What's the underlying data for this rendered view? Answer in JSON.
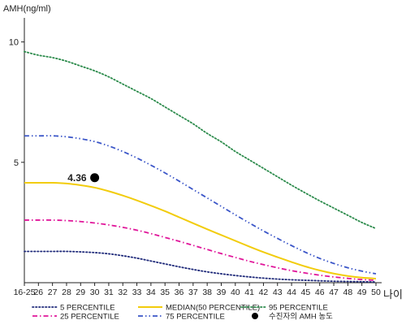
{
  "chart_data": {
    "type": "line",
    "ylabel": "AMH(ng/ml)",
    "xlabel": "나이",
    "ylim": [
      0,
      11
    ],
    "yticks": [
      5,
      10
    ],
    "categories": [
      "16-25",
      "26",
      "27",
      "28",
      "29",
      "30",
      "31",
      "32",
      "33",
      "34",
      "35",
      "36",
      "37",
      "38",
      "39",
      "40",
      "41",
      "42",
      "43",
      "44",
      "45",
      "46",
      "47",
      "48",
      "49",
      "50"
    ],
    "series": [
      {
        "name": "5 PERCENTILE",
        "color": "#1f2a7a",
        "dash": "dotted",
        "values": [
          1.3,
          1.3,
          1.3,
          1.3,
          1.28,
          1.25,
          1.2,
          1.12,
          1.02,
          0.9,
          0.78,
          0.66,
          0.55,
          0.45,
          0.37,
          0.3,
          0.24,
          0.19,
          0.15,
          0.12,
          0.1,
          0.08,
          0.06,
          0.05,
          0.04,
          0.03
        ]
      },
      {
        "name": "25 PERCENTILE",
        "color": "#e0169a",
        "dash": "dashdot",
        "values": [
          2.6,
          2.6,
          2.6,
          2.58,
          2.54,
          2.48,
          2.4,
          2.3,
          2.18,
          2.04,
          1.88,
          1.72,
          1.55,
          1.38,
          1.21,
          1.05,
          0.89,
          0.75,
          0.62,
          0.5,
          0.4,
          0.31,
          0.24,
          0.18,
          0.13,
          0.1
        ]
      },
      {
        "name": "MEDIAN(50 PERCENTILE)",
        "color": "#f2cc0c",
        "dash": "solid",
        "values": [
          4.15,
          4.15,
          4.15,
          4.12,
          4.05,
          3.95,
          3.8,
          3.62,
          3.42,
          3.2,
          2.97,
          2.72,
          2.47,
          2.22,
          1.98,
          1.74,
          1.5,
          1.27,
          1.06,
          0.86,
          0.67,
          0.51,
          0.38,
          0.28,
          0.21,
          0.17
        ]
      },
      {
        "name": "75 PERCENTILE",
        "color": "#3a55c8",
        "dash": "dashdotdot",
        "values": [
          6.1,
          6.1,
          6.1,
          6.06,
          5.98,
          5.86,
          5.68,
          5.45,
          5.18,
          4.88,
          4.56,
          4.22,
          3.87,
          3.52,
          3.17,
          2.82,
          2.48,
          2.15,
          1.84,
          1.54,
          1.26,
          1.01,
          0.8,
          0.62,
          0.48,
          0.37
        ]
      },
      {
        "name": "95 PERCENTILE",
        "color": "#2a8a4a",
        "dash": "dotted",
        "values": [
          9.6,
          9.45,
          9.35,
          9.2,
          9.0,
          8.8,
          8.55,
          8.25,
          7.95,
          7.65,
          7.3,
          6.95,
          6.6,
          6.2,
          5.85,
          5.45,
          5.1,
          4.75,
          4.4,
          4.05,
          3.72,
          3.4,
          3.1,
          2.8,
          2.5,
          2.25
        ]
      }
    ],
    "point": {
      "x": "30",
      "value": 4.36,
      "label": "4.36",
      "legend_label": "수진자의 AMH 농도",
      "color": "#000000"
    },
    "legend_order": [
      "5 PERCENTILE",
      "25 PERCENTILE",
      "MEDIAN(50 PERCENTILE)",
      "75 PERCENTILE",
      "95 PERCENTILE"
    ]
  }
}
